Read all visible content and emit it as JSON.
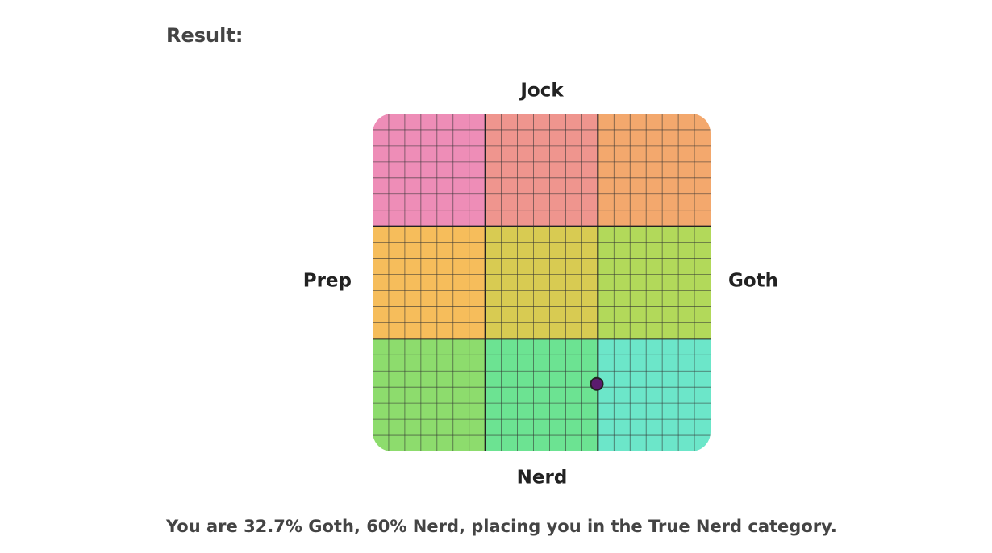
{
  "heading": "Result:",
  "grid": {
    "top": "Jock",
    "bottom": "Nerd",
    "left": "Prep",
    "right": "Goth",
    "xlim": [
      -100,
      100
    ],
    "ylim": [
      -100,
      100
    ],
    "subdivisions": 21,
    "colors": [
      "#ee8db7",
      "#ef958e",
      "#f3a86d",
      "#f6bd5b",
      "#d8cb52",
      "#b2d95a",
      "#8ddc6d",
      "#6ce392",
      "#6ce6c9"
    ]
  },
  "result": {
    "lead": "You are",
    "x_value": 32.7,
    "x_text": "% Goth,",
    "y_value": 60,
    "y_text": "% Nerd, placing you in the True Nerd category."
  }
}
